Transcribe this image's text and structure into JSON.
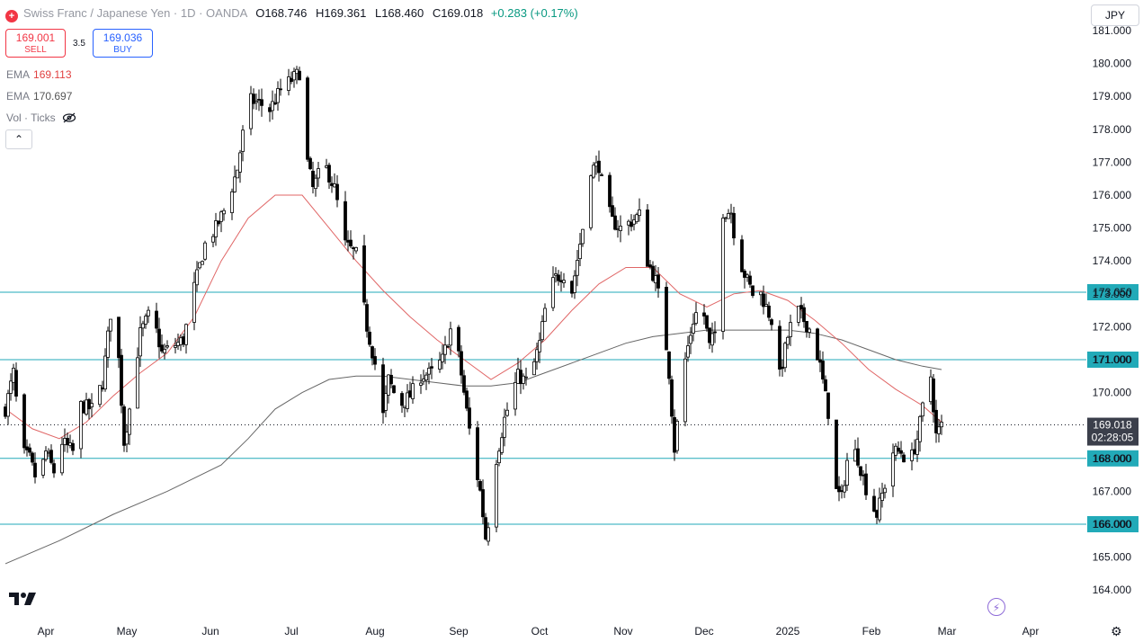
{
  "header": {
    "title": "Swiss Franc / Japanese Yen · 1D · OANDA",
    "open_label": "O",
    "open": "168.746",
    "high_label": "H",
    "high": "169.361",
    "low_label": "L",
    "low": "168.460",
    "close_label": "C",
    "close": "169.018",
    "change": "+0.283 (+0.17%)"
  },
  "trade": {
    "sell_price": "169.001",
    "sell_label": "SELL",
    "spread": "3.5",
    "buy_price": "169.036",
    "buy_label": "BUY"
  },
  "indicators": {
    "ema1_label": "EMA",
    "ema1_value": "169.113",
    "ema2_label": "EMA",
    "ema2_value": "170.697",
    "vol_label": "Vol · Ticks"
  },
  "currency": "JPY",
  "icons": {
    "logo": "tradingview-logo-icon",
    "symbol": "flag-icon",
    "collapse": "chevron-up-icon",
    "hidden": "eye-off-icon",
    "flash": "lightning-icon",
    "settings": "gear-icon"
  },
  "colors": {
    "up": "#ffffff",
    "down": "#000000",
    "wick": "#000000",
    "ema_fast": "#e06666",
    "ema_slow": "#666666",
    "level_line": "#22aab8",
    "level_label_bg": "#22aab8"
  },
  "chart_data": {
    "type": "candlestick",
    "title": "Swiss Franc / Japanese Yen · 1D · OANDA",
    "ylim": [
      163.6,
      181.0
    ],
    "y_ticks": [
      "164.000",
      "165.000",
      "166.000",
      "167.000",
      "168.000",
      "169.000",
      "170.000",
      "171.000",
      "172.000",
      "173.000",
      "174.000",
      "175.000",
      "176.000",
      "177.000",
      "178.000",
      "179.000",
      "180.000",
      "181.000"
    ],
    "x_ticks": [
      {
        "label": "Apr",
        "day": 15
      },
      {
        "label": "May",
        "day": 45
      },
      {
        "label": "Jun",
        "day": 76
      },
      {
        "label": "Jul",
        "day": 106
      },
      {
        "label": "Aug",
        "day": 137
      },
      {
        "label": "Sep",
        "day": 168
      },
      {
        "label": "Oct",
        "day": 198
      },
      {
        "label": "Nov",
        "day": 229
      },
      {
        "label": "Dec",
        "day": 259
      },
      {
        "label": "2025",
        "day": 290
      },
      {
        "label": "Feb",
        "day": 321
      },
      {
        "label": "Mar",
        "day": 349
      },
      {
        "label": "Apr",
        "day": 380
      }
    ],
    "x_range_days": [
      0,
      375
    ],
    "levels": [
      {
        "value": 173.05,
        "label": "173.050"
      },
      {
        "value": 171.0,
        "label": "171.000"
      },
      {
        "value": 168.0,
        "label": "168.000"
      },
      {
        "value": 166.0,
        "label": "166.000"
      }
    ],
    "last_price": {
      "value": 169.018,
      "label": "169.018",
      "countdown": "02:28:05"
    },
    "price_path": [
      [
        0,
        169.5
      ],
      [
        3,
        170.6
      ],
      [
        6,
        168.2
      ],
      [
        9,
        168.0
      ],
      [
        12,
        167.2
      ],
      [
        15,
        168.2
      ],
      [
        18,
        167.6
      ],
      [
        21,
        168.5
      ],
      [
        25,
        168.2
      ],
      [
        28,
        169.6
      ],
      [
        32,
        169.5
      ],
      [
        36,
        170.3
      ],
      [
        40,
        173.1
      ],
      [
        42,
        171.0
      ],
      [
        44,
        168.5
      ],
      [
        46,
        169.5
      ],
      [
        50,
        171.8
      ],
      [
        54,
        172.5
      ],
      [
        58,
        171.2
      ],
      [
        62,
        171.4
      ],
      [
        66,
        171.6
      ],
      [
        70,
        173.2
      ],
      [
        74,
        174.5
      ],
      [
        78,
        175.0
      ],
      [
        82,
        175.7
      ],
      [
        86,
        176.8
      ],
      [
        90,
        178.9
      ],
      [
        94,
        178.8
      ],
      [
        98,
        178.6
      ],
      [
        102,
        179.2
      ],
      [
        106,
        179.5
      ],
      [
        110,
        179.8
      ],
      [
        112,
        177.0
      ],
      [
        114,
        176.2
      ],
      [
        118,
        177.0
      ],
      [
        122,
        176.2
      ],
      [
        126,
        174.5
      ],
      [
        130,
        174.2
      ],
      [
        134,
        172.0
      ],
      [
        138,
        170.5
      ],
      [
        140,
        169.3
      ],
      [
        142,
        170.4
      ],
      [
        146,
        169.6
      ],
      [
        150,
        169.9
      ],
      [
        154,
        170.5
      ],
      [
        158,
        170.6
      ],
      [
        162,
        171.0
      ],
      [
        166,
        172.2
      ],
      [
        170,
        170.0
      ],
      [
        173,
        168.3
      ],
      [
        176,
        167.0
      ],
      [
        178,
        165.6
      ],
      [
        180,
        166.5
      ],
      [
        182,
        168.0
      ],
      [
        185,
        169.2
      ],
      [
        188,
        170.0
      ],
      [
        190,
        170.5
      ],
      [
        194,
        170.3
      ],
      [
        198,
        171.5
      ],
      [
        201,
        173.0
      ],
      [
        204,
        173.5
      ],
      [
        207,
        173.6
      ],
      [
        210,
        173.1
      ],
      [
        214,
        175.0
      ],
      [
        217,
        176.8
      ],
      [
        220,
        176.9
      ],
      [
        222,
        175.9
      ],
      [
        225,
        175.2
      ],
      [
        228,
        175.0
      ],
      [
        232,
        175.2
      ],
      [
        235,
        175.4
      ],
      [
        238,
        174.0
      ],
      [
        241,
        173.4
      ],
      [
        244,
        172.2
      ],
      [
        246,
        170.6
      ],
      [
        248,
        168.3
      ],
      [
        250,
        169.8
      ],
      [
        252,
        171.0
      ],
      [
        255,
        172.2
      ],
      [
        258,
        172.8
      ],
      [
        261,
        171.4
      ],
      [
        264,
        172.0
      ],
      [
        266,
        175.5
      ],
      [
        269,
        175.5
      ],
      [
        271,
        174.3
      ],
      [
        274,
        173.6
      ],
      [
        277,
        173.0
      ],
      [
        280,
        173.0
      ],
      [
        284,
        172.2
      ],
      [
        287,
        170.5
      ],
      [
        290,
        171.7
      ],
      [
        293,
        172.6
      ],
      [
        296,
        172.2
      ],
      [
        299,
        171.8
      ],
      [
        302,
        170.8
      ],
      [
        305,
        169.4
      ],
      [
        308,
        167.0
      ],
      [
        310,
        166.8
      ],
      [
        313,
        168.5
      ],
      [
        316,
        168.0
      ],
      [
        320,
        166.8
      ],
      [
        323,
        166.3
      ],
      [
        326,
        167.2
      ],
      [
        329,
        168.2
      ],
      [
        332,
        168.2
      ],
      [
        335,
        167.8
      ],
      [
        338,
        168.6
      ],
      [
        341,
        170.0
      ],
      [
        343,
        170.5
      ],
      [
        345,
        168.7
      ],
      [
        347,
        169.0
      ]
    ],
    "ema_fast": [
      [
        0,
        169.5
      ],
      [
        10,
        168.9
      ],
      [
        20,
        168.6
      ],
      [
        30,
        169.1
      ],
      [
        40,
        169.9
      ],
      [
        50,
        170.6
      ],
      [
        60,
        171.2
      ],
      [
        70,
        172.3
      ],
      [
        80,
        174.0
      ],
      [
        90,
        175.3
      ],
      [
        100,
        176.0
      ],
      [
        110,
        176.0
      ],
      [
        120,
        175.0
      ],
      [
        130,
        174.0
      ],
      [
        140,
        173.1
      ],
      [
        150,
        172.3
      ],
      [
        160,
        171.6
      ],
      [
        170,
        171.0
      ],
      [
        180,
        170.4
      ],
      [
        190,
        170.9
      ],
      [
        200,
        171.6
      ],
      [
        210,
        172.5
      ],
      [
        220,
        173.3
      ],
      [
        230,
        173.8
      ],
      [
        240,
        173.8
      ],
      [
        250,
        173.0
      ],
      [
        260,
        172.6
      ],
      [
        270,
        173.0
      ],
      [
        280,
        173.1
      ],
      [
        290,
        172.8
      ],
      [
        300,
        172.2
      ],
      [
        310,
        171.5
      ],
      [
        320,
        170.7
      ],
      [
        330,
        170.1
      ],
      [
        340,
        169.6
      ],
      [
        347,
        169.1
      ]
    ],
    "ema_slow": [
      [
        0,
        164.8
      ],
      [
        20,
        165.5
      ],
      [
        40,
        166.3
      ],
      [
        60,
        167.0
      ],
      [
        80,
        167.8
      ],
      [
        90,
        168.6
      ],
      [
        100,
        169.5
      ],
      [
        110,
        170.0
      ],
      [
        120,
        170.4
      ],
      [
        130,
        170.5
      ],
      [
        140,
        170.5
      ],
      [
        150,
        170.4
      ],
      [
        160,
        170.3
      ],
      [
        170,
        170.2
      ],
      [
        180,
        170.2
      ],
      [
        190,
        170.3
      ],
      [
        200,
        170.6
      ],
      [
        210,
        170.9
      ],
      [
        220,
        171.2
      ],
      [
        230,
        171.5
      ],
      [
        240,
        171.7
      ],
      [
        250,
        171.8
      ],
      [
        260,
        171.9
      ],
      [
        270,
        171.9
      ],
      [
        280,
        171.9
      ],
      [
        290,
        171.9
      ],
      [
        300,
        171.8
      ],
      [
        310,
        171.6
      ],
      [
        320,
        171.3
      ],
      [
        330,
        171.0
      ],
      [
        340,
        170.8
      ],
      [
        347,
        170.7
      ]
    ]
  }
}
